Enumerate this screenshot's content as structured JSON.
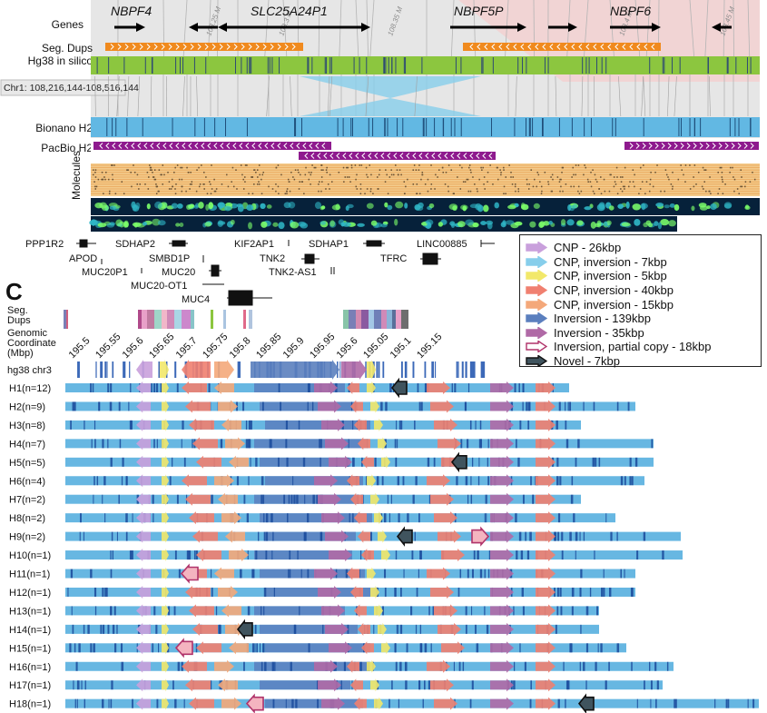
{
  "panel_label": "C",
  "top_tracks": {
    "genes_label": "Genes",
    "segdup_label": "Seg. Dups",
    "insilico_label": "Hg38 in silico",
    "coord_label": "Chr1: 108,216,144-108,516,144",
    "bionano_label": "Bionano H2",
    "pacbio_label": "PacBio H2",
    "molecules_label": "Molecules",
    "genes": [
      "NBPF4",
      "SLC25A24P1",
      "NBPF5P",
      "NBPF6"
    ],
    "watermarks": [
      "108.25 M",
      "108.3 M",
      "108.35 M",
      "108.4 M",
      "108.45 M"
    ]
  },
  "gene_names": [
    "PPP1R2",
    "SDHAP2",
    "KIF2AP1",
    "SDHAP1",
    "LINC00885",
    "APOD",
    "SMBD1P",
    "TNK2",
    "TFRC",
    "MUC20P1",
    "MUC20",
    "TNK2-AS1",
    "MUC20-OT1",
    "MUC4"
  ],
  "bottom": {
    "segdup_label": [
      "Seg.",
      "Dups"
    ],
    "coord_label": [
      "Genomic",
      "Coordinate",
      "(Mbp)"
    ],
    "ticks": [
      "195.5",
      "195.55",
      "195.6",
      "195.65",
      "195.7",
      "195.75",
      "195.8",
      "195.85",
      "195.9",
      "195.95",
      "195.6",
      "195.05",
      "195.1",
      "195.15"
    ],
    "ref_label": "hg38 chr3",
    "haplotypes": [
      "H1(n=12)",
      "H2(n=9)",
      "H3(n=8)",
      "H4(n=7)",
      "H5(n=5)",
      "H6(n=4)",
      "H7(n=2)",
      "H8(n=2)",
      "H9(n=2)",
      "H10(n=1)",
      "H11(n=1)",
      "H12(n=1)",
      "H13(n=1)",
      "H14(n=1)",
      "H15(n=1)",
      "H16(n=1)",
      "H17(n=1)",
      "H18(n=1)"
    ]
  },
  "legend": [
    {
      "label": "CNP - 26kbp",
      "color": "#c9a0dc",
      "stroke": "#c9a0dc"
    },
    {
      "label": "CNP, inversion - 7kbp",
      "color": "#87ceeb",
      "stroke": "#87ceeb"
    },
    {
      "label": "CNP, inversion  - 5kbp",
      "color": "#f2e86a",
      "stroke": "#f2e86a"
    },
    {
      "label": "CNP, inversion - 40kbp",
      "color": "#f08070",
      "stroke": "#f08070"
    },
    {
      "label": "CNP, inversion - 15kbp",
      "color": "#f4a87a",
      "stroke": "#f4a87a"
    },
    {
      "label": "Inversion - 139kbp",
      "color": "#5b7fbe",
      "stroke": "#5b7fbe"
    },
    {
      "label": "Inversion - 35kbp",
      "color": "#b06aa6",
      "stroke": "#b06aa6"
    },
    {
      "label": "Inversion, partial copy - 18kbp",
      "color": "#ffffff",
      "stroke": "#b0336a"
    },
    {
      "label": "Novel - 7kbp",
      "color": "#40545e",
      "stroke": "#111111"
    }
  ]
}
